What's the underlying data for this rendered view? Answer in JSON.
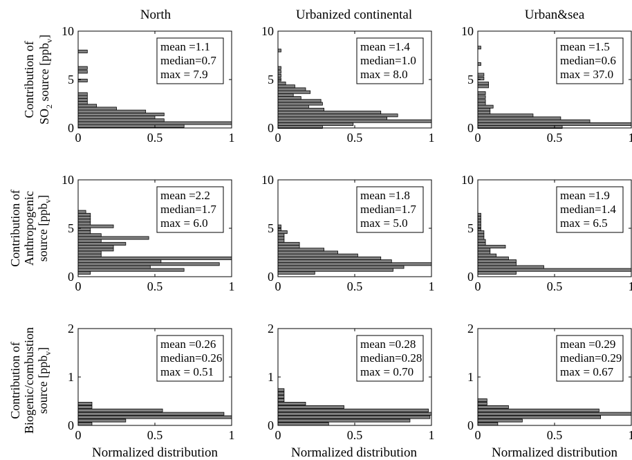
{
  "col_titles": [
    "North",
    "Urbanized continental",
    "Urban&sea"
  ],
  "row_labels": [
    {
      "line1": "Contribution of",
      "line2_pre": "SO",
      "line2_sub": "2",
      "line2_post": " source [ppb",
      "line2_sub2": "v",
      "line2_end": "]"
    },
    {
      "line1": "Contribution of",
      "line2_pre": "Anthropogenic",
      "line2_sub": "",
      "line2_post": "",
      "line2_sub2": "v",
      "line3": "source [ppb",
      "line3_end": "]"
    },
    {
      "line1": "Contribution of",
      "line2_pre": "Biogenic/combustion",
      "line2_sub": "",
      "line2_post": "",
      "line2_sub2": "v",
      "line3": "source [ppb",
      "line3_end": "]"
    }
  ],
  "xlabel": "Normalized distribution",
  "chart_data": [
    {
      "type": "bar",
      "orientation": "horizontal",
      "row": 0,
      "col": 0,
      "xlim": [
        0,
        1
      ],
      "ylim": [
        0,
        10
      ],
      "xticks": [
        "0",
        "0.5",
        "1"
      ],
      "yticks": [
        "0",
        "5",
        "10"
      ],
      "stats": [
        "mean =1.1",
        "median=0.7",
        "max = 7.9"
      ],
      "bars": [
        {
          "y": 0.2,
          "v": 0.69
        },
        {
          "y": 0.5,
          "v": 1.0
        },
        {
          "y": 0.8,
          "v": 0.56
        },
        {
          "y": 1.1,
          "v": 0.5
        },
        {
          "y": 1.4,
          "v": 0.56
        },
        {
          "y": 1.7,
          "v": 0.44
        },
        {
          "y": 2.0,
          "v": 0.25
        },
        {
          "y": 2.3,
          "v": 0.12
        },
        {
          "y": 2.6,
          "v": 0.06
        },
        {
          "y": 2.9,
          "v": 0.06
        },
        {
          "y": 3.2,
          "v": 0.06
        },
        {
          "y": 3.5,
          "v": 0.06
        },
        {
          "y": 4.9,
          "v": 0.06
        },
        {
          "y": 5.8,
          "v": 0.06
        },
        {
          "y": 6.2,
          "v": 0.06
        },
        {
          "y": 7.9,
          "v": 0.06
        }
      ]
    },
    {
      "type": "bar",
      "orientation": "horizontal",
      "row": 0,
      "col": 1,
      "xlim": [
        0,
        1
      ],
      "ylim": [
        0,
        10
      ],
      "xticks": [
        "0",
        "0.5",
        "1"
      ],
      "yticks": [
        "0",
        "5",
        "10"
      ],
      "stats": [
        "mean =1.4",
        "median=1.0",
        "max = 8.0"
      ],
      "bars": [
        {
          "y": 0.1,
          "v": 0.29
        },
        {
          "y": 0.4,
          "v": 0.49
        },
        {
          "y": 0.7,
          "v": 1.0
        },
        {
          "y": 1.0,
          "v": 0.71
        },
        {
          "y": 1.3,
          "v": 0.78
        },
        {
          "y": 1.6,
          "v": 0.67
        },
        {
          "y": 1.9,
          "v": 0.3
        },
        {
          "y": 2.2,
          "v": 0.2
        },
        {
          "y": 2.5,
          "v": 0.29
        },
        {
          "y": 2.8,
          "v": 0.28
        },
        {
          "y": 3.1,
          "v": 0.15
        },
        {
          "y": 3.4,
          "v": 0.1
        },
        {
          "y": 3.7,
          "v": 0.21
        },
        {
          "y": 4.0,
          "v": 0.18
        },
        {
          "y": 4.3,
          "v": 0.11
        },
        {
          "y": 4.6,
          "v": 0.05
        },
        {
          "y": 5.0,
          "v": 0.02
        },
        {
          "y": 5.4,
          "v": 0.02
        },
        {
          "y": 5.8,
          "v": 0.02
        },
        {
          "y": 6.2,
          "v": 0.02
        },
        {
          "y": 8.0,
          "v": 0.02
        }
      ]
    },
    {
      "type": "bar",
      "orientation": "horizontal",
      "row": 0,
      "col": 2,
      "xlim": [
        0,
        1
      ],
      "ylim": [
        0,
        10
      ],
      "xticks": [
        "0",
        "0.5",
        "1"
      ],
      "yticks": [
        "0",
        "5",
        "10"
      ],
      "stats": [
        "mean =1.5",
        "median=0.6",
        "max = 37.0"
      ],
      "bars": [
        {
          "y": 0.1,
          "v": 0.55
        },
        {
          "y": 0.4,
          "v": 1.0
        },
        {
          "y": 0.7,
          "v": 0.73
        },
        {
          "y": 1.0,
          "v": 0.54
        },
        {
          "y": 1.3,
          "v": 0.36
        },
        {
          "y": 1.6,
          "v": 0.08
        },
        {
          "y": 1.9,
          "v": 0.08
        },
        {
          "y": 2.2,
          "v": 0.1
        },
        {
          "y": 2.5,
          "v": 0.05
        },
        {
          "y": 2.8,
          "v": 0.05
        },
        {
          "y": 3.2,
          "v": 0.05
        },
        {
          "y": 3.6,
          "v": 0.05
        },
        {
          "y": 4.3,
          "v": 0.07
        },
        {
          "y": 4.6,
          "v": 0.07
        },
        {
          "y": 5.1,
          "v": 0.04
        },
        {
          "y": 5.5,
          "v": 0.04
        },
        {
          "y": 6.6,
          "v": 0.02
        },
        {
          "y": 8.3,
          "v": 0.02
        }
      ]
    },
    {
      "type": "bar",
      "orientation": "horizontal",
      "row": 1,
      "col": 0,
      "xlim": [
        0,
        1
      ],
      "ylim": [
        0,
        10
      ],
      "xticks": [
        "0",
        "0.5",
        "1"
      ],
      "yticks": [
        "0",
        "5",
        "10"
      ],
      "stats": [
        "mean =2.2",
        "median=1.7",
        "max = 6.0"
      ],
      "bars": [
        {
          "y": 0.4,
          "v": 0.08
        },
        {
          "y": 0.7,
          "v": 0.69
        },
        {
          "y": 1.0,
          "v": 0.47
        },
        {
          "y": 1.3,
          "v": 0.92
        },
        {
          "y": 1.6,
          "v": 0.54
        },
        {
          "y": 1.9,
          "v": 1.0
        },
        {
          "y": 2.2,
          "v": 0.15
        },
        {
          "y": 2.5,
          "v": 0.15
        },
        {
          "y": 2.8,
          "v": 0.23
        },
        {
          "y": 3.1,
          "v": 0.23
        },
        {
          "y": 3.4,
          "v": 0.31
        },
        {
          "y": 3.7,
          "v": 0.15
        },
        {
          "y": 4.0,
          "v": 0.46
        },
        {
          "y": 4.3,
          "v": 0.15
        },
        {
          "y": 4.6,
          "v": 0.08
        },
        {
          "y": 4.9,
          "v": 0.08
        },
        {
          "y": 5.2,
          "v": 0.23
        },
        {
          "y": 5.5,
          "v": 0.08
        },
        {
          "y": 5.8,
          "v": 0.08
        },
        {
          "y": 6.1,
          "v": 0.08
        },
        {
          "y": 6.4,
          "v": 0.08
        },
        {
          "y": 6.7,
          "v": 0.05
        }
      ]
    },
    {
      "type": "bar",
      "orientation": "horizontal",
      "row": 1,
      "col": 1,
      "xlim": [
        0,
        1
      ],
      "ylim": [
        0,
        10
      ],
      "xticks": [
        "0",
        "0.5",
        "1"
      ],
      "yticks": [
        "0",
        "5",
        "10"
      ],
      "stats": [
        "mean =1.8",
        "median=1.7",
        "max = 5.0"
      ],
      "bars": [
        {
          "y": 0.4,
          "v": 0.24
        },
        {
          "y": 0.7,
          "v": 0.75
        },
        {
          "y": 1.0,
          "v": 0.82
        },
        {
          "y": 1.3,
          "v": 1.0
        },
        {
          "y": 1.6,
          "v": 0.74
        },
        {
          "y": 1.9,
          "v": 0.67
        },
        {
          "y": 2.2,
          "v": 0.52
        },
        {
          "y": 2.5,
          "v": 0.39
        },
        {
          "y": 2.8,
          "v": 0.3
        },
        {
          "y": 3.1,
          "v": 0.14
        },
        {
          "y": 3.4,
          "v": 0.14
        },
        {
          "y": 3.7,
          "v": 0.04
        },
        {
          "y": 4.0,
          "v": 0.04
        },
        {
          "y": 4.3,
          "v": 0.04
        },
        {
          "y": 4.6,
          "v": 0.06
        },
        {
          "y": 4.9,
          "v": 0.02
        },
        {
          "y": 5.2,
          "v": 0.02
        }
      ]
    },
    {
      "type": "bar",
      "orientation": "horizontal",
      "row": 1,
      "col": 2,
      "xlim": [
        0,
        1
      ],
      "ylim": [
        0,
        10
      ],
      "xticks": [
        "0",
        "0.5",
        "1"
      ],
      "yticks": [
        "0",
        "5",
        "10"
      ],
      "stats": [
        "mean =1.9",
        "median=1.4",
        "max = 6.5"
      ],
      "bars": [
        {
          "y": 0.4,
          "v": 0.25
        },
        {
          "y": 0.7,
          "v": 1.0
        },
        {
          "y": 1.0,
          "v": 0.43
        },
        {
          "y": 1.3,
          "v": 0.25
        },
        {
          "y": 1.6,
          "v": 0.25
        },
        {
          "y": 1.9,
          "v": 0.2
        },
        {
          "y": 2.2,
          "v": 0.12
        },
        {
          "y": 2.5,
          "v": 0.08
        },
        {
          "y": 2.8,
          "v": 0.08
        },
        {
          "y": 3.1,
          "v": 0.18
        },
        {
          "y": 3.4,
          "v": 0.05
        },
        {
          "y": 3.7,
          "v": 0.05
        },
        {
          "y": 4.0,
          "v": 0.04
        },
        {
          "y": 4.3,
          "v": 0.04
        },
        {
          "y": 4.6,
          "v": 0.04
        },
        {
          "y": 4.9,
          "v": 0.02
        },
        {
          "y": 5.2,
          "v": 0.02
        },
        {
          "y": 5.5,
          "v": 0.02
        },
        {
          "y": 5.8,
          "v": 0.02
        },
        {
          "y": 6.1,
          "v": 0.02
        },
        {
          "y": 6.4,
          "v": 0.02
        }
      ]
    },
    {
      "type": "bar",
      "orientation": "horizontal",
      "row": 2,
      "col": 0,
      "xlim": [
        0,
        1
      ],
      "ylim": [
        0,
        2
      ],
      "xticks": [
        "0",
        "0.5",
        "1"
      ],
      "yticks": [
        "0",
        "1",
        "2"
      ],
      "stats": [
        "mean =0.26",
        "median=0.26",
        "max = 0.51"
      ],
      "bars": [
        {
          "y": 0.03,
          "v": 0.09
        },
        {
          "y": 0.1,
          "v": 0.31
        },
        {
          "y": 0.17,
          "v": 1.0
        },
        {
          "y": 0.24,
          "v": 0.95
        },
        {
          "y": 0.31,
          "v": 0.55
        },
        {
          "y": 0.38,
          "v": 0.09
        },
        {
          "y": 0.45,
          "v": 0.09
        }
      ]
    },
    {
      "type": "bar",
      "orientation": "horizontal",
      "row": 2,
      "col": 1,
      "xlim": [
        0,
        1
      ],
      "ylim": [
        0,
        2
      ],
      "xticks": [
        "0",
        "0.5",
        "1"
      ],
      "yticks": [
        "0",
        "1",
        "2"
      ],
      "stats": [
        "mean =0.28",
        "median=0.28",
        "max = 0.70"
      ],
      "bars": [
        {
          "y": 0.03,
          "v": 0.33
        },
        {
          "y": 0.1,
          "v": 0.86
        },
        {
          "y": 0.17,
          "v": 0.99
        },
        {
          "y": 0.24,
          "v": 1.0
        },
        {
          "y": 0.31,
          "v": 0.98
        },
        {
          "y": 0.38,
          "v": 0.43
        },
        {
          "y": 0.45,
          "v": 0.18
        },
        {
          "y": 0.52,
          "v": 0.04
        },
        {
          "y": 0.59,
          "v": 0.04
        },
        {
          "y": 0.66,
          "v": 0.04
        },
        {
          "y": 0.73,
          "v": 0.04
        }
      ]
    },
    {
      "type": "bar",
      "orientation": "horizontal",
      "row": 2,
      "col": 2,
      "xlim": [
        0,
        1
      ],
      "ylim": [
        0,
        2
      ],
      "xticks": [
        "0",
        "0.5",
        "1"
      ],
      "yticks": [
        "0",
        "1",
        "2"
      ],
      "stats": [
        "mean =0.29",
        "median=0.29",
        "max = 0.67"
      ],
      "bars": [
        {
          "y": 0.03,
          "v": 0.13
        },
        {
          "y": 0.1,
          "v": 0.29
        },
        {
          "y": 0.17,
          "v": 0.8
        },
        {
          "y": 0.24,
          "v": 1.0
        },
        {
          "y": 0.31,
          "v": 0.79
        },
        {
          "y": 0.38,
          "v": 0.2
        },
        {
          "y": 0.45,
          "v": 0.06
        },
        {
          "y": 0.52,
          "v": 0.06
        }
      ]
    }
  ]
}
